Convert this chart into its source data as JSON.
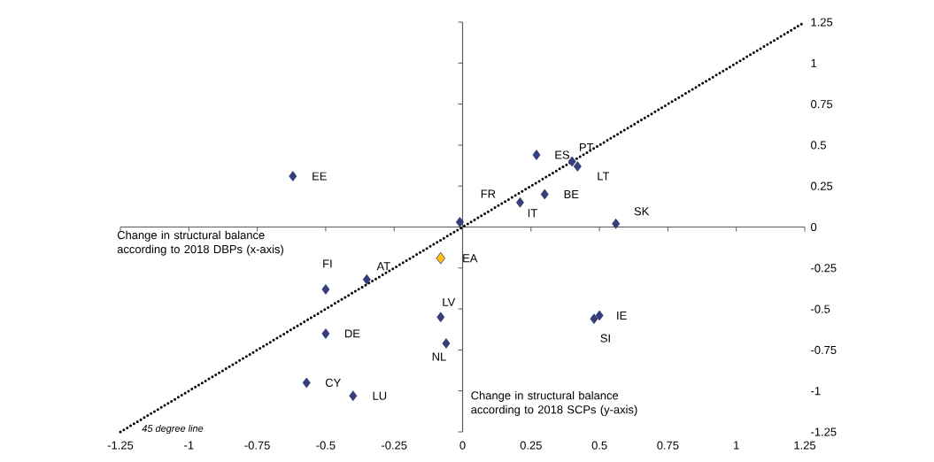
{
  "chart_data": {
    "type": "scatter",
    "xlabel": "Change in structural balance according to 2018 DBPs (x-axis)",
    "ylabel": "Change in structural balance according to 2018 SCPs (y-axis)",
    "xlim": [
      -1.25,
      1.25
    ],
    "ylim": [
      -1.25,
      1.25
    ],
    "xticks": [
      -1.25,
      -1,
      -0.75,
      -0.5,
      -0.25,
      0,
      0.25,
      0.5,
      0.75,
      1,
      1.25
    ],
    "yticks": [
      -1.25,
      -1,
      -0.75,
      -0.5,
      -0.25,
      0,
      0.25,
      0.5,
      0.75,
      1,
      1.25
    ],
    "marker": "diamond",
    "series": [
      {
        "color": "#333f80",
        "x": [
          -0.62,
          0.27,
          0.4,
          0.42,
          -0.01,
          0.21,
          0.3,
          0.56,
          -0.5,
          -0.35,
          -0.08,
          -0.5,
          -0.06,
          0.5,
          0.48,
          -0.57,
          -0.4
        ],
        "values": [
          0.31,
          0.44,
          0.4,
          0.37,
          0.03,
          0.15,
          0.2,
          0.02,
          -0.38,
          -0.32,
          -0.55,
          -0.65,
          -0.71,
          -0.54,
          -0.56,
          -0.95,
          -1.03
        ]
      },
      {
        "color": "#ffc000",
        "x": [
          -0.08
        ],
        "values": [
          -0.19
        ]
      },
      {
        "type": "line",
        "color": "#000000",
        "line_style": "dotted",
        "marker": "none",
        "x": [
          -1.25,
          1.25
        ],
        "values": [
          -1.25,
          1.25
        ]
      }
    ],
    "annotations": [
      {
        "text": "EE",
        "x": -0.62,
        "y": 0.31
      },
      {
        "text": "ES",
        "x": 0.27,
        "y": 0.44
      },
      {
        "text": "PT",
        "x": 0.4,
        "y": 0.4
      },
      {
        "text": "LT",
        "x": 0.42,
        "y": 0.37
      },
      {
        "text": "FR",
        "x": -0.01,
        "y": 0.03
      },
      {
        "text": "IT",
        "x": 0.21,
        "y": 0.15
      },
      {
        "text": "BE",
        "x": 0.3,
        "y": 0.2
      },
      {
        "text": "SK",
        "x": 0.56,
        "y": 0.02
      },
      {
        "text": "EA",
        "x": -0.08,
        "y": -0.19
      },
      {
        "text": "FI",
        "x": -0.5,
        "y": -0.38
      },
      {
        "text": "AT",
        "x": -0.35,
        "y": -0.32
      },
      {
        "text": "LV",
        "x": -0.08,
        "y": -0.55
      },
      {
        "text": "DE",
        "x": -0.5,
        "y": -0.65
      },
      {
        "text": "NL",
        "x": -0.06,
        "y": -0.71
      },
      {
        "text": "IE",
        "x": 0.5,
        "y": -0.54
      },
      {
        "text": "SI",
        "x": 0.48,
        "y": -0.56
      },
      {
        "text": "CY",
        "x": -0.57,
        "y": -0.95
      },
      {
        "text": "LU",
        "x": -0.4,
        "y": -1.03
      },
      {
        "text": "*45 degree  line*",
        "x": -1.25,
        "y": -1.25
      }
    ]
  }
}
